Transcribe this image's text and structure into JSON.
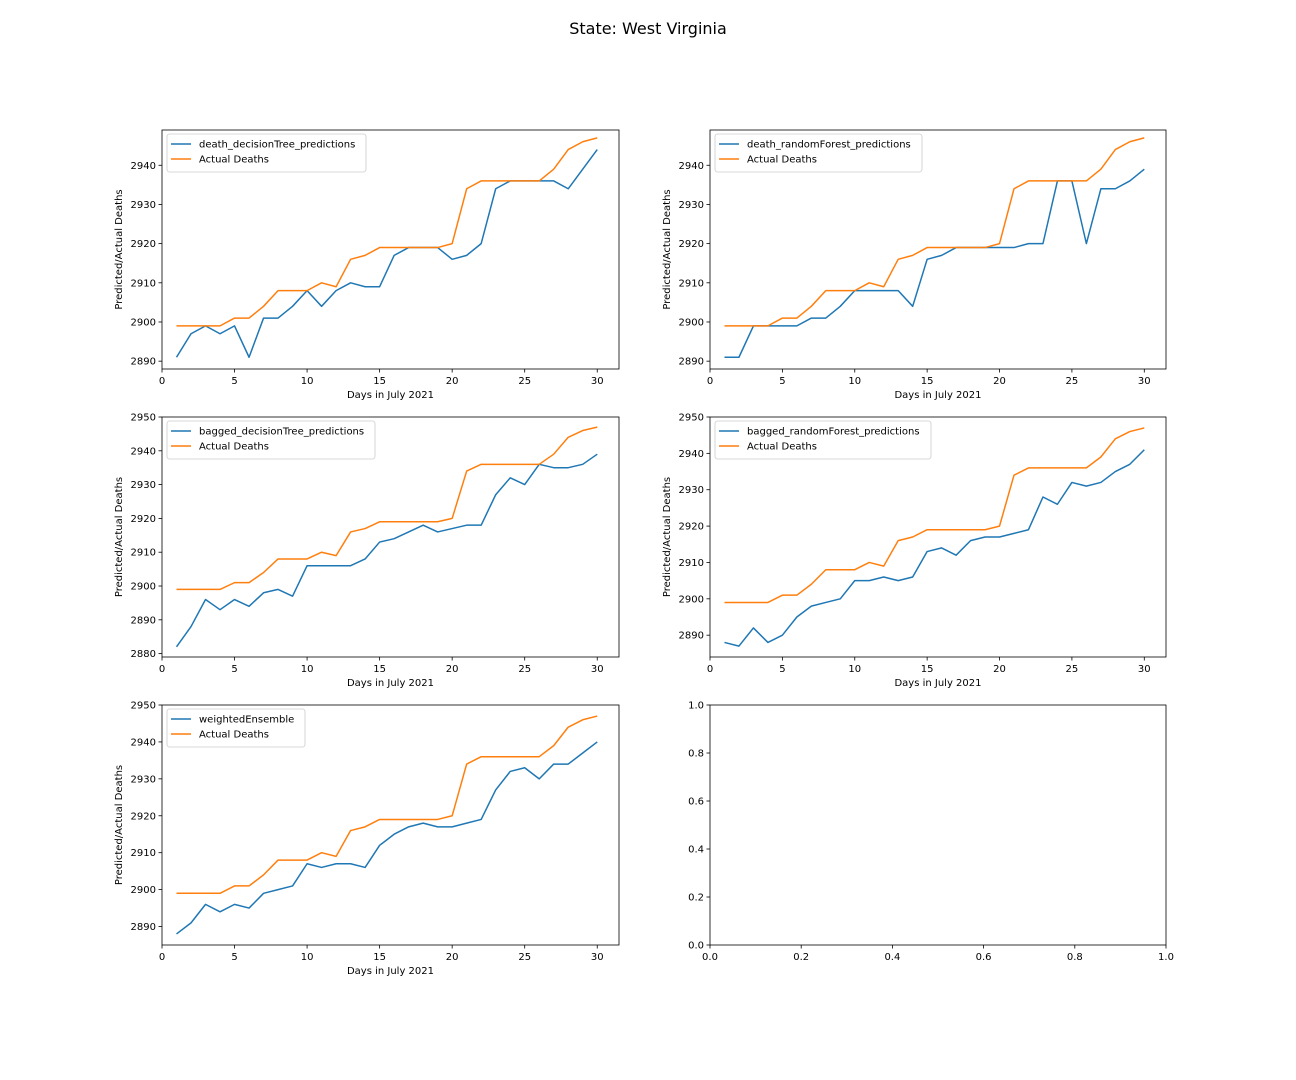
{
  "figure": {
    "title": "State: West Virginia"
  },
  "colors": {
    "prediction": "#1f77b4",
    "actual": "#ff7f0e"
  },
  "chart_data": [
    {
      "type": "line",
      "xlabel": "Days in July 2021",
      "ylabel": "Predicted/Actual Deaths",
      "xlim": [
        0,
        31.5
      ],
      "ylim": [
        2888,
        2949
      ],
      "xticks": [
        0,
        5,
        10,
        15,
        20,
        25,
        30
      ],
      "yticks": [
        2890,
        2900,
        2910,
        2920,
        2930,
        2940
      ],
      "legend": "top-left",
      "x": [
        1,
        2,
        3,
        4,
        5,
        6,
        7,
        8,
        9,
        10,
        11,
        12,
        13,
        14,
        15,
        16,
        17,
        18,
        19,
        20,
        21,
        22,
        23,
        24,
        25,
        26,
        27,
        28,
        29,
        30
      ],
      "series": [
        {
          "name": "death_decisionTree_predictions",
          "values": [
            2891,
            2897,
            2899,
            2897,
            2899,
            2891,
            2901,
            2901,
            2904,
            2908,
            2904,
            2908,
            2910,
            2909,
            2909,
            2917,
            2919,
            2919,
            2919,
            2916,
            2917,
            2920,
            2934,
            2936,
            2936,
            2936,
            2936,
            2934,
            2939,
            2944
          ]
        },
        {
          "name": "Actual Deaths",
          "values": [
            2899,
            2899,
            2899,
            2899,
            2901,
            2901,
            2904,
            2908,
            2908,
            2908,
            2910,
            2909,
            2916,
            2917,
            2919,
            2919,
            2919,
            2919,
            2919,
            2920,
            2934,
            2936,
            2936,
            2936,
            2936,
            2936,
            2939,
            2944,
            2946,
            2947
          ]
        }
      ]
    },
    {
      "type": "line",
      "xlabel": "Days in July 2021",
      "ylabel": "Predicted/Actual Deaths",
      "xlim": [
        0,
        31.5
      ],
      "ylim": [
        2888,
        2949
      ],
      "xticks": [
        0,
        5,
        10,
        15,
        20,
        25,
        30
      ],
      "yticks": [
        2890,
        2900,
        2910,
        2920,
        2930,
        2940
      ],
      "legend": "top-left",
      "x": [
        1,
        2,
        3,
        4,
        5,
        6,
        7,
        8,
        9,
        10,
        11,
        12,
        13,
        14,
        15,
        16,
        17,
        18,
        19,
        20,
        21,
        22,
        23,
        24,
        25,
        26,
        27,
        28,
        29,
        30
      ],
      "series": [
        {
          "name": "death_randomForest_predictions",
          "values": [
            2891,
            2891,
            2899,
            2899,
            2899,
            2899,
            2901,
            2901,
            2904,
            2908,
            2908,
            2908,
            2908,
            2904,
            2916,
            2917,
            2919,
            2919,
            2919,
            2919,
            2919,
            2920,
            2920,
            2936,
            2936,
            2920,
            2934,
            2934,
            2936,
            2939
          ]
        },
        {
          "name": "Actual Deaths",
          "values": [
            2899,
            2899,
            2899,
            2899,
            2901,
            2901,
            2904,
            2908,
            2908,
            2908,
            2910,
            2909,
            2916,
            2917,
            2919,
            2919,
            2919,
            2919,
            2919,
            2920,
            2934,
            2936,
            2936,
            2936,
            2936,
            2936,
            2939,
            2944,
            2946,
            2947
          ]
        }
      ]
    },
    {
      "type": "line",
      "xlabel": "Days in July 2021",
      "ylabel": "Predicted/Actual Deaths",
      "xlim": [
        0,
        31.5
      ],
      "ylim": [
        2879,
        2950
      ],
      "xticks": [
        0,
        5,
        10,
        15,
        20,
        25,
        30
      ],
      "yticks": [
        2880,
        2890,
        2900,
        2910,
        2920,
        2930,
        2940,
        2950
      ],
      "legend": "top-left",
      "x": [
        1,
        2,
        3,
        4,
        5,
        6,
        7,
        8,
        9,
        10,
        11,
        12,
        13,
        14,
        15,
        16,
        17,
        18,
        19,
        20,
        21,
        22,
        23,
        24,
        25,
        26,
        27,
        28,
        29,
        30
      ],
      "series": [
        {
          "name": "bagged_decisionTree_predictions",
          "values": [
            2882,
            2888,
            2896,
            2893,
            2896,
            2894,
            2898,
            2899,
            2897,
            2906,
            2906,
            2906,
            2906,
            2908,
            2913,
            2914,
            2916,
            2918,
            2916,
            2917,
            2918,
            2918,
            2927,
            2932,
            2930,
            2936,
            2935,
            2935,
            2936,
            2939
          ]
        },
        {
          "name": "Actual Deaths",
          "values": [
            2899,
            2899,
            2899,
            2899,
            2901,
            2901,
            2904,
            2908,
            2908,
            2908,
            2910,
            2909,
            2916,
            2917,
            2919,
            2919,
            2919,
            2919,
            2919,
            2920,
            2934,
            2936,
            2936,
            2936,
            2936,
            2936,
            2939,
            2944,
            2946,
            2947
          ]
        }
      ]
    },
    {
      "type": "line",
      "xlabel": "Days in July 2021",
      "ylabel": "Predicted/Actual Deaths",
      "xlim": [
        0,
        31.5
      ],
      "ylim": [
        2884,
        2950
      ],
      "xticks": [
        0,
        5,
        10,
        15,
        20,
        25,
        30
      ],
      "yticks": [
        2890,
        2900,
        2910,
        2920,
        2930,
        2940,
        2950
      ],
      "legend": "top-left",
      "x": [
        1,
        2,
        3,
        4,
        5,
        6,
        7,
        8,
        9,
        10,
        11,
        12,
        13,
        14,
        15,
        16,
        17,
        18,
        19,
        20,
        21,
        22,
        23,
        24,
        25,
        26,
        27,
        28,
        29,
        30
      ],
      "series": [
        {
          "name": "bagged_randomForest_predictions",
          "values": [
            2888,
            2887,
            2892,
            2888,
            2890,
            2895,
            2898,
            2899,
            2900,
            2905,
            2905,
            2906,
            2905,
            2906,
            2913,
            2914,
            2912,
            2916,
            2917,
            2917,
            2918,
            2919,
            2928,
            2926,
            2932,
            2931,
            2932,
            2935,
            2937,
            2941
          ]
        },
        {
          "name": "Actual Deaths",
          "values": [
            2899,
            2899,
            2899,
            2899,
            2901,
            2901,
            2904,
            2908,
            2908,
            2908,
            2910,
            2909,
            2916,
            2917,
            2919,
            2919,
            2919,
            2919,
            2919,
            2920,
            2934,
            2936,
            2936,
            2936,
            2936,
            2936,
            2939,
            2944,
            2946,
            2947
          ]
        }
      ]
    },
    {
      "type": "line",
      "xlabel": "Days in July 2021",
      "ylabel": "Predicted/Actual Deaths",
      "xlim": [
        0,
        31.5
      ],
      "ylim": [
        2885,
        2950
      ],
      "xticks": [
        0,
        5,
        10,
        15,
        20,
        25,
        30
      ],
      "yticks": [
        2890,
        2900,
        2910,
        2920,
        2930,
        2940,
        2950
      ],
      "legend": "top-left",
      "x": [
        1,
        2,
        3,
        4,
        5,
        6,
        7,
        8,
        9,
        10,
        11,
        12,
        13,
        14,
        15,
        16,
        17,
        18,
        19,
        20,
        21,
        22,
        23,
        24,
        25,
        26,
        27,
        28,
        29,
        30
      ],
      "series": [
        {
          "name": "weightedEnsemble",
          "values": [
            2888,
            2891,
            2896,
            2894,
            2896,
            2895,
            2899,
            2900,
            2901,
            2907,
            2906,
            2907,
            2907,
            2906,
            2912,
            2915,
            2917,
            2918,
            2917,
            2917,
            2918,
            2919,
            2927,
            2932,
            2933,
            2930,
            2934,
            2934,
            2937,
            2940
          ]
        },
        {
          "name": "Actual Deaths",
          "values": [
            2899,
            2899,
            2899,
            2899,
            2901,
            2901,
            2904,
            2908,
            2908,
            2908,
            2910,
            2909,
            2916,
            2917,
            2919,
            2919,
            2919,
            2919,
            2919,
            2920,
            2934,
            2936,
            2936,
            2936,
            2936,
            2936,
            2939,
            2944,
            2946,
            2947
          ]
        }
      ]
    },
    {
      "type": "line",
      "xlabel": "",
      "ylabel": "",
      "xlim": [
        0,
        1
      ],
      "ylim": [
        0,
        1
      ],
      "xticks": [
        0.0,
        0.2,
        0.4,
        0.6,
        0.8,
        1.0
      ],
      "yticks": [
        0.0,
        0.2,
        0.4,
        0.6,
        0.8,
        1.0
      ],
      "xticklabels": [
        "0.0",
        "0.2",
        "0.4",
        "0.6",
        "0.8",
        "1.0"
      ],
      "yticklabels": [
        "0.0",
        "0.2",
        "0.4",
        "0.6",
        "0.8",
        "1.0"
      ],
      "legend": "none",
      "x": [],
      "series": []
    }
  ]
}
